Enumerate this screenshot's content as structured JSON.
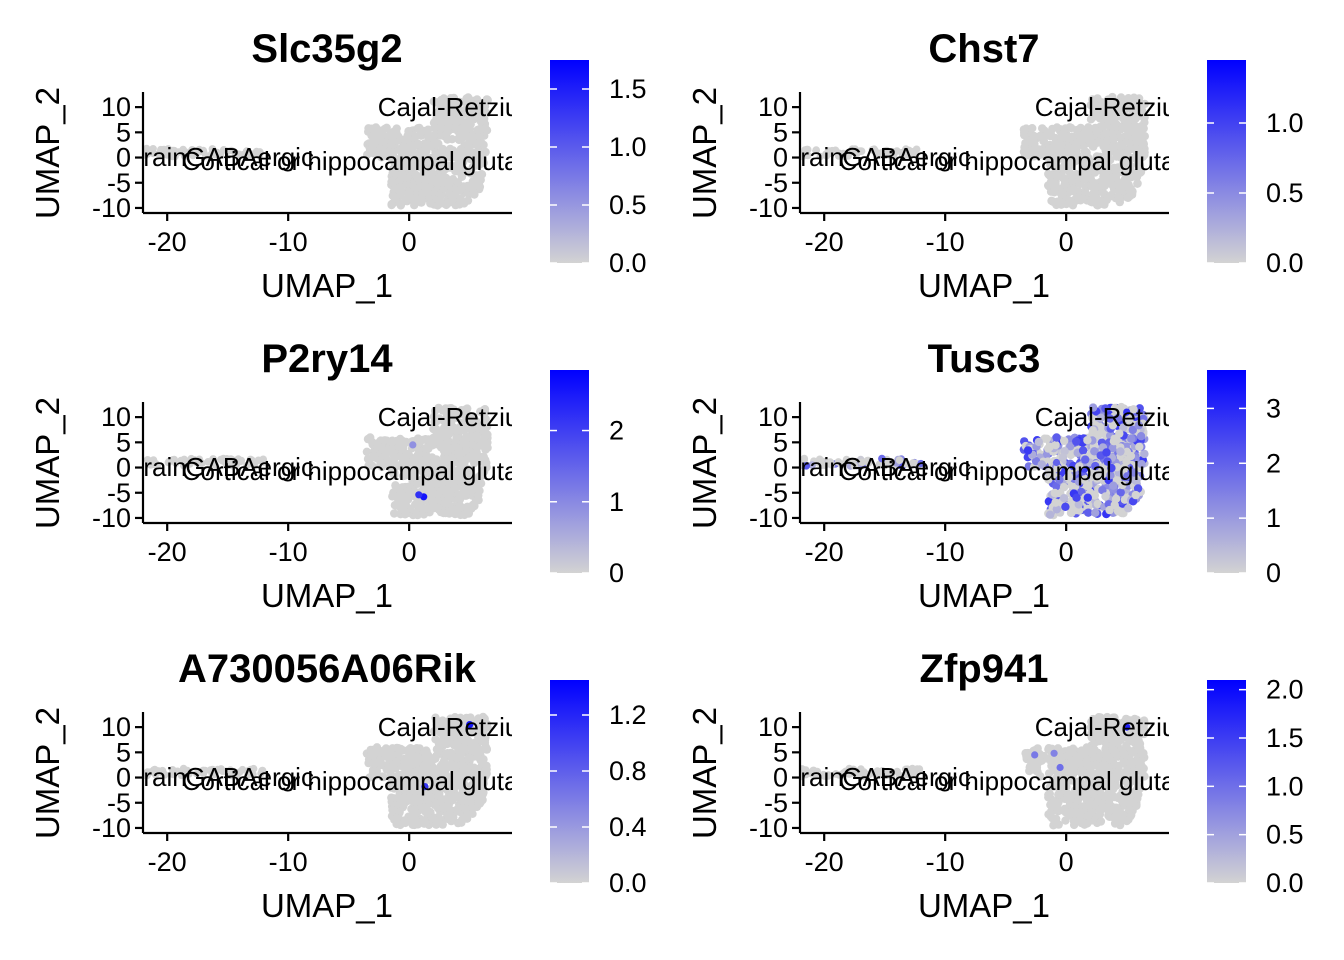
{
  "chart_data": [
    {
      "type": "scatter",
      "title": "Slc35g2",
      "xlabel": "UMAP_1",
      "ylabel": "UMAP_2",
      "xlim": [
        -22,
        8.5
      ],
      "ylim": [
        -11,
        13
      ],
      "x_ticks": [
        "-20",
        "-10",
        "0"
      ],
      "y_ticks": [
        "10",
        "5",
        "0",
        "-5",
        "-10"
      ],
      "colorbar": {
        "min": 0.0,
        "max": 1.75,
        "ticks": [
          "0.0",
          "0.5",
          "1.0",
          "1.5"
        ],
        "low_color": "#d3d3d3",
        "high_color": "#0000ff"
      },
      "cluster_labels": [
        "Cajal-Retzius",
        "GABAergic",
        "Cortical or hippocampal glutamatergic",
        "Brain"
      ],
      "expression_level": 0.0,
      "high_points": []
    },
    {
      "type": "scatter",
      "title": "Chst7",
      "xlabel": "UMAP_1",
      "ylabel": "UMAP_2",
      "xlim": [
        -22,
        8.5
      ],
      "ylim": [
        -11,
        13
      ],
      "x_ticks": [
        "-20",
        "-10",
        "0"
      ],
      "y_ticks": [
        "10",
        "5",
        "0",
        "-5",
        "-10"
      ],
      "colorbar": {
        "min": 0.0,
        "max": 1.45,
        "ticks": [
          "0.0",
          "0.5",
          "1.0"
        ],
        "low_color": "#d3d3d3",
        "high_color": "#0000ff"
      },
      "cluster_labels": [
        "Cajal-Retzius",
        "GABAergic",
        "Cortical or hippocampal glutamatergic",
        "Brain"
      ],
      "expression_level": 0.0,
      "high_points": []
    },
    {
      "type": "scatter",
      "title": "P2ry14",
      "xlabel": "UMAP_1",
      "ylabel": "UMAP_2",
      "xlim": [
        -22,
        8.5
      ],
      "ylim": [
        -11,
        13
      ],
      "x_ticks": [
        "-20",
        "-10",
        "0"
      ],
      "y_ticks": [
        "10",
        "5",
        "0",
        "-5",
        "-10"
      ],
      "colorbar": {
        "min": 0,
        "max": 2.85,
        "ticks": [
          "0",
          "1",
          "2"
        ],
        "low_color": "#d3d3d3",
        "high_color": "#0000ff"
      },
      "cluster_labels": [
        "Cajal-Retzius",
        "GABAergic",
        "Cortical or hippocampal glutamatergic",
        "Brain"
      ],
      "expression_level": 0.0,
      "high_points": [
        [
          0.3,
          4.5,
          0.9
        ],
        [
          1.2,
          -5.8,
          2.6
        ],
        [
          0.8,
          -5.4,
          2.2
        ]
      ]
    },
    {
      "type": "scatter",
      "title": "Tusc3",
      "xlabel": "UMAP_1",
      "ylabel": "UMAP_2",
      "xlim": [
        -22,
        8.5
      ],
      "ylim": [
        -11,
        13
      ],
      "x_ticks": [
        "-20",
        "-10",
        "0"
      ],
      "y_ticks": [
        "10",
        "5",
        "0",
        "-5",
        "-10"
      ],
      "colorbar": {
        "min": 0,
        "max": 3.7,
        "ticks": [
          "0",
          "1",
          "2",
          "3"
        ],
        "low_color": "#d3d3d3",
        "high_color": "#0000ff"
      },
      "cluster_labels": [
        "Cajal-Retzius",
        "GABAergic",
        "Cortical or hippocampal glutamatergic",
        "Brain"
      ],
      "expression_level": 0.55,
      "high_points": [
        [
          5,
          11,
          2.8
        ],
        [
          -0.8,
          1.0,
          2.0
        ],
        [
          -12,
          0.8,
          1.8
        ]
      ]
    },
    {
      "type": "scatter",
      "title": "A730056A06Rik",
      "xlabel": "UMAP_1",
      "ylabel": "UMAP_2",
      "xlim": [
        -22,
        8.5
      ],
      "ylim": [
        -11,
        13
      ],
      "x_ticks": [
        "-20",
        "-10",
        "0"
      ],
      "y_ticks": [
        "10",
        "5",
        "0",
        "-5",
        "-10"
      ],
      "colorbar": {
        "min": 0.0,
        "max": 1.45,
        "ticks": [
          "0.0",
          "0.4",
          "0.8",
          "1.2"
        ],
        "low_color": "#d3d3d3",
        "high_color": "#0000ff"
      },
      "cluster_labels": [
        "Cajal-Retzius",
        "GABAergic",
        "Cortical or hippocampal glutamatergic",
        "Brain"
      ],
      "expression_level": 0.0,
      "high_points": [
        [
          5,
          10.5,
          1.3
        ],
        [
          1.3,
          -1.8,
          1.1
        ]
      ]
    },
    {
      "type": "scatter",
      "title": "Zfp941",
      "xlabel": "UMAP_1",
      "ylabel": "UMAP_2",
      "xlim": [
        -22,
        8.5
      ],
      "ylim": [
        -11,
        13
      ],
      "x_ticks": [
        "-20",
        "-10",
        "0"
      ],
      "y_ticks": [
        "10",
        "5",
        "0",
        "-5",
        "-10"
      ],
      "colorbar": {
        "min": 0.0,
        "max": 2.1,
        "ticks": [
          "0.0",
          "0.5",
          "1.0",
          "1.5",
          "2.0"
        ],
        "low_color": "#d3d3d3",
        "high_color": "#0000ff"
      },
      "cluster_labels": [
        "Cajal-Retzius",
        "GABAergic",
        "Cortical or hippocampal glutamatergic",
        "Brain"
      ],
      "expression_level": 0.0,
      "high_points": [
        [
          5,
          10,
          1.8
        ],
        [
          -0.5,
          2.0,
          1.0
        ],
        [
          -2.6,
          4.5,
          0.9
        ],
        [
          -1.0,
          4.8,
          0.8
        ]
      ]
    }
  ]
}
